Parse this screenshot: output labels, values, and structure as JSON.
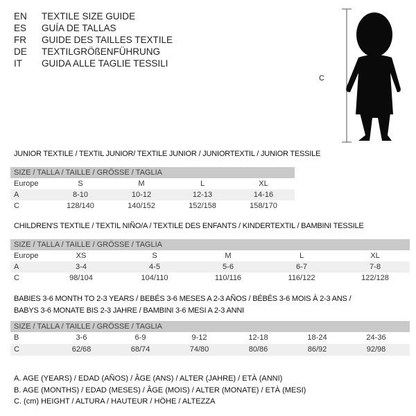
{
  "languages": [
    {
      "code": "EN",
      "title": "TEXTILE SIZE GUIDE"
    },
    {
      "code": "ES",
      "title": "GUÍA DE TALLAS"
    },
    {
      "code": "FR",
      "title": "GUIDE DES TAILLES TEXTILE"
    },
    {
      "code": "DE",
      "title": "TEXTILGRÖßENFÜHRUNG"
    },
    {
      "code": "IT",
      "title": "GUIDA ALLE TAGLIE TESSILI"
    }
  ],
  "figure": {
    "measure_label": "C",
    "icon": "baby-silhouette-icon"
  },
  "junior": {
    "heading": "JUNIOR TEXTILE / TEXTIL JUNIOR/ TEXTILE JUNIOR / JUNIORTEXTIL / JUNIOR TESSILE",
    "header": "SIZE / TALLA / TAILLE / GRÖSSE / TAGLIA",
    "rows": [
      [
        "Europe",
        "S",
        "M",
        "L",
        "XL"
      ],
      [
        "A",
        "8-10",
        "10-12",
        "12-13",
        "14-16"
      ],
      [
        "C",
        "128/140",
        "140/152",
        "152/158",
        "158/170"
      ]
    ]
  },
  "children": {
    "heading": "CHILDREN'S TEXTILE / TEXTIL NIÑO/A / TEXTILE DES ENFANTS / KINDERTEXTIL / BAMBINI TESSILE",
    "header": "SIZE / TALLA / TAILLE / GRÖSSE / TAGLIA",
    "rows": [
      [
        "Europe",
        "XS",
        "S",
        "M",
        "L",
        "XL"
      ],
      [
        "A",
        "3-4",
        "4-5",
        "5-6",
        "6-7",
        "7-8"
      ],
      [
        "C",
        "98/104",
        "104/110",
        "110/116",
        "116/122",
        "122/128"
      ]
    ]
  },
  "babies": {
    "heading_1": "BABIES 3-6 MONTH TO 2-3 YEARS / BEBÉS 3-6 MESES A 2-3 AÑOS / BÉBÉS 3-6 MOIS À 2-3 ANS /",
    "heading_2": "BABYS 3-6 MONATE BIS 2-3 JAHRE / BAMBINI 3-6 MESI A 2-3 ANNI",
    "header": "SIZE / TALLA / TAILLE / GRÖSSE / TAGLIA",
    "rows": [
      [
        "B",
        "3-6",
        "6-9",
        "9-12",
        "12-18",
        "18-24",
        "24-36"
      ],
      [
        "C",
        "62/68",
        "68/74",
        "74/80",
        "80/86",
        "86/92",
        "92/98"
      ]
    ]
  },
  "legend": [
    "A. AGE (YEARS) / EDAD (AÑOS) / ÂGE (ANS) / ALTER (JAHRE) / ETÀ (ANNI)",
    "B. AGE (MONTHS) / EDAD (MESES) / ÂGE (MOIS) / ALTER (MONATE) / ETÀ (MESI)",
    "C. (cm) HEIGHT / ALTURA / HAUTEUR / HÖHE / ALTEZZA"
  ]
}
